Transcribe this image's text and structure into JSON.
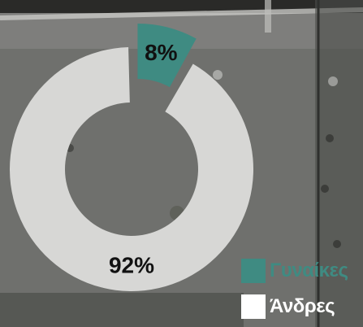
{
  "chart_data": {
    "type": "pie",
    "style": "donut",
    "title": "",
    "slices": [
      {
        "label": "Γυναίκες",
        "value": 8,
        "display": "8%",
        "color": "#3f8b82",
        "exploded": true
      },
      {
        "label": "Άνδρες",
        "value": 92,
        "display": "92%",
        "color": "#d7d7d5",
        "exploded": false
      }
    ],
    "legend": {
      "placement": "bottom-right",
      "items": [
        {
          "label": "Γυναίκες",
          "color": "#3f8b82",
          "text_color": "#3f8b82"
        },
        {
          "label": "Άνδρες",
          "color": "#ffffff",
          "text_color": "#ffffff"
        }
      ]
    }
  }
}
